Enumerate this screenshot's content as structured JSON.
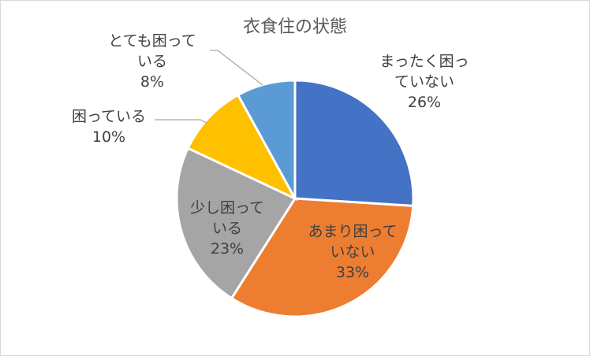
{
  "chart_data": {
    "type": "pie",
    "title": "衣食住の状態",
    "slices": [
      {
        "label_lines": [
          "まったく困っ",
          "ていない"
        ],
        "pct_text": "26%",
        "value": 26,
        "color": "#4472C4"
      },
      {
        "label_lines": [
          "あまり困って",
          "いない"
        ],
        "pct_text": "33%",
        "value": 33,
        "color": "#ED7D31"
      },
      {
        "label_lines": [
          "少し困って",
          "いる"
        ],
        "pct_text": "23%",
        "value": 23,
        "color": "#A5A5A5"
      },
      {
        "label_lines": [
          "困っている"
        ],
        "pct_text": "10%",
        "value": 10,
        "color": "#FFC000"
      },
      {
        "label_lines": [
          "とても困って",
          "いる"
        ],
        "pct_text": "8%",
        "value": 8,
        "color": "#5B9BD5"
      }
    ],
    "legend": "none"
  }
}
